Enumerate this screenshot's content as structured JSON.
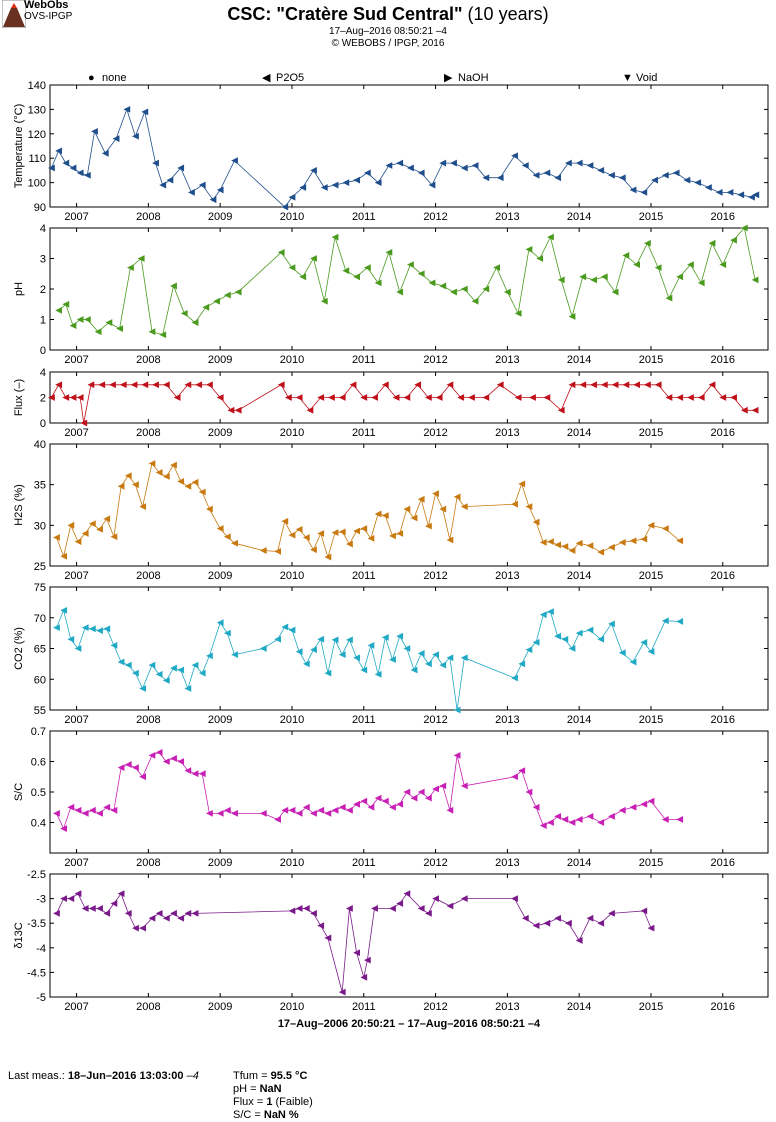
{
  "logo": {
    "line1": "WebObs",
    "line2": "OVS-IPGP"
  },
  "header": {
    "title_bold": "CSC: \"Cratère Sud Central\"",
    "title_rest": " (10 years)",
    "date_line": "17–Aug–2016 08:50:21 –4",
    "copyright": "© WEBOBS / IPGP, 2016"
  },
  "legend": [
    {
      "symbol": "●",
      "label": "none"
    },
    {
      "symbol": "◀",
      "label": "P2O5"
    },
    {
      "symbol": "▶",
      "label": "NaOH"
    },
    {
      "symbol": "▼",
      "label": "Void"
    }
  ],
  "x_axis_caption": "17–Aug–2006 20:50:21 – 17–Aug–2016 08:50:21 –4",
  "footer": {
    "last_meas_label": "Last meas.: ",
    "last_meas_value": "18–Jun–2016 13:03:00",
    "last_meas_tz": " –4",
    "tfum_label": "Tfum = ",
    "tfum_value": "95.5 °C",
    "ph_label": "pH = ",
    "ph_value": "NaN",
    "flux_label": "Flux = ",
    "flux_value": "1",
    "flux_note": " (Faible)",
    "sc_label": "S/C = ",
    "sc_value": "NaN %"
  },
  "chart_data": {
    "type": "line",
    "x_range": [
      2006.63,
      2016.63
    ],
    "x_ticks": [
      2007,
      2008,
      2009,
      2010,
      2011,
      2012,
      2013,
      2014,
      2015,
      2016
    ],
    "panels": [
      {
        "id": "temperature",
        "ylabel": "Temperature (°C)",
        "ylim": [
          90,
          140
        ],
        "yticks": [
          90,
          100,
          110,
          120,
          130,
          140
        ],
        "color": "#1f4e8c",
        "x": [
          2006.65,
          2006.75,
          2006.85,
          2006.95,
          2007.05,
          2007.15,
          2007.25,
          2007.4,
          2007.55,
          2007.7,
          2007.82,
          2007.95,
          2008.1,
          2008.2,
          2008.3,
          2008.45,
          2008.6,
          2008.75,
          2008.9,
          2009.0,
          2009.2,
          2009.9,
          2010.0,
          2010.15,
          2010.3,
          2010.45,
          2010.6,
          2010.75,
          2010.9,
          2011.05,
          2011.2,
          2011.35,
          2011.5,
          2011.65,
          2011.8,
          2011.95,
          2012.1,
          2012.25,
          2012.4,
          2012.55,
          2012.7,
          2012.9,
          2013.1,
          2013.25,
          2013.4,
          2013.55,
          2013.7,
          2013.85,
          2014.0,
          2014.15,
          2014.3,
          2014.45,
          2014.6,
          2014.75,
          2014.9,
          2015.05,
          2015.2,
          2015.35,
          2015.5,
          2015.65,
          2015.8,
          2015.95,
          2016.1,
          2016.25,
          2016.4,
          2016.46
        ],
        "values": [
          106,
          113,
          108,
          106,
          104,
          103,
          121,
          112,
          118,
          130,
          119,
          129,
          108,
          99,
          101,
          106,
          96,
          99,
          93,
          97,
          109,
          90,
          94,
          98,
          105,
          98,
          99,
          100,
          101,
          104,
          100,
          107,
          108,
          106,
          104,
          99,
          108,
          108,
          106,
          107,
          102,
          102,
          111,
          107,
          103,
          104,
          102,
          108,
          108,
          107,
          105,
          103,
          102,
          97,
          96,
          101,
          103,
          104,
          101,
          100,
          98,
          96,
          96,
          95,
          94,
          95
        ]
      },
      {
        "id": "ph",
        "ylabel": "pH",
        "ylim": [
          0,
          4
        ],
        "yticks": [
          0,
          1,
          2,
          3,
          4
        ],
        "color": "#4a9a1e",
        "x": [
          2006.75,
          2006.85,
          2006.95,
          2007.05,
          2007.15,
          2007.3,
          2007.45,
          2007.6,
          2007.75,
          2007.9,
          2008.05,
          2008.2,
          2008.35,
          2008.5,
          2008.65,
          2008.8,
          2008.95,
          2009.1,
          2009.25,
          2009.85,
          2010.0,
          2010.15,
          2010.3,
          2010.45,
          2010.6,
          2010.75,
          2010.9,
          2011.05,
          2011.2,
          2011.35,
          2011.5,
          2011.65,
          2011.8,
          2011.95,
          2012.1,
          2012.25,
          2012.4,
          2012.55,
          2012.7,
          2012.85,
          2013.0,
          2013.15,
          2013.3,
          2013.45,
          2013.6,
          2013.75,
          2013.9,
          2014.05,
          2014.2,
          2014.35,
          2014.5,
          2014.65,
          2014.8,
          2014.95,
          2015.1,
          2015.25,
          2015.4,
          2015.55,
          2015.7,
          2015.85,
          2016.0,
          2016.15,
          2016.3,
          2016.45
        ],
        "values": [
          1.3,
          1.5,
          0.8,
          1.0,
          1.0,
          0.6,
          0.9,
          0.7,
          2.7,
          3.0,
          0.6,
          0.5,
          2.1,
          1.2,
          0.9,
          1.4,
          1.6,
          1.8,
          1.9,
          3.2,
          2.7,
          2.4,
          3.0,
          1.6,
          3.7,
          2.6,
          2.4,
          2.7,
          2.2,
          3.2,
          1.9,
          2.8,
          2.5,
          2.2,
          2.1,
          1.9,
          2.0,
          1.6,
          2.0,
          2.7,
          1.9,
          1.2,
          3.3,
          3.0,
          3.7,
          2.3,
          1.1,
          2.4,
          2.3,
          2.4,
          1.9,
          3.1,
          2.8,
          3.5,
          2.7,
          1.7,
          2.4,
          2.8,
          2.2,
          3.5,
          2.8,
          3.6,
          4.0,
          2.3
        ]
      },
      {
        "id": "flux",
        "ylabel": "Flux (–)",
        "ylim": [
          0,
          4
        ],
        "yticks": [
          0,
          2,
          4
        ],
        "color": "#c0101a",
        "x": [
          2006.65,
          2006.75,
          2006.85,
          2006.95,
          2007.05,
          2007.1,
          2007.2,
          2007.35,
          2007.5,
          2007.65,
          2007.8,
          2007.95,
          2008.1,
          2008.25,
          2008.4,
          2008.55,
          2008.7,
          2008.85,
          2009.0,
          2009.15,
          2009.25,
          2009.85,
          2009.95,
          2010.1,
          2010.25,
          2010.4,
          2010.55,
          2010.7,
          2010.85,
          2011.0,
          2011.15,
          2011.3,
          2011.45,
          2011.6,
          2011.75,
          2011.9,
          2012.05,
          2012.2,
          2012.35,
          2012.5,
          2012.7,
          2012.9,
          2013.15,
          2013.35,
          2013.55,
          2013.75,
          2013.9,
          2014.05,
          2014.2,
          2014.35,
          2014.5,
          2014.65,
          2014.8,
          2014.95,
          2015.1,
          2015.25,
          2015.4,
          2015.55,
          2015.7,
          2015.85,
          2016.0,
          2016.15,
          2016.3,
          2016.45
        ],
        "values": [
          2,
          3,
          2,
          2,
          2,
          0,
          3,
          3,
          3,
          3,
          3,
          3,
          3,
          3,
          2,
          3,
          3,
          3,
          2,
          1,
          1,
          3,
          2,
          2,
          1,
          2,
          2,
          2,
          3,
          2,
          2,
          3,
          2,
          2,
          3,
          2,
          2,
          3,
          2,
          2,
          2,
          3,
          2,
          2,
          2,
          1,
          3,
          3,
          3,
          3,
          3,
          3,
          3,
          3,
          3,
          2,
          2,
          2,
          2,
          3,
          2,
          2,
          1,
          1
        ]
      },
      {
        "id": "h2s",
        "ylabel": "H2S (%)",
        "ylim": [
          25,
          40
        ],
        "yticks": [
          25,
          30,
          35,
          40
        ],
        "color": "#c87a10",
        "x": [
          2006.72,
          2006.82,
          2006.92,
          2007.02,
          2007.12,
          2007.22,
          2007.32,
          2007.42,
          2007.52,
          2007.62,
          2007.72,
          2007.82,
          2007.92,
          2008.05,
          2008.15,
          2008.25,
          2008.35,
          2008.45,
          2008.55,
          2008.65,
          2008.75,
          2008.85,
          2009.0,
          2009.1,
          2009.2,
          2009.6,
          2009.8,
          2009.9,
          2010.0,
          2010.1,
          2010.2,
          2010.3,
          2010.4,
          2010.5,
          2010.6,
          2010.7,
          2010.8,
          2010.9,
          2011.0,
          2011.1,
          2011.2,
          2011.3,
          2011.4,
          2011.5,
          2011.6,
          2011.7,
          2011.8,
          2011.9,
          2012.0,
          2012.1,
          2012.2,
          2012.3,
          2012.4,
          2013.1,
          2013.2,
          2013.3,
          2013.4,
          2013.5,
          2013.6,
          2013.7,
          2013.8,
          2013.9,
          2014.0,
          2014.15,
          2014.3,
          2014.45,
          2014.6,
          2014.75,
          2014.9,
          2015.0,
          2015.2,
          2015.4
        ],
        "values": [
          28.5,
          26.2,
          30.0,
          28.0,
          29.0,
          30.2,
          29.5,
          30.8,
          28.6,
          34.8,
          36.1,
          35.0,
          32.3,
          37.6,
          36.5,
          36.0,
          37.4,
          35.4,
          34.8,
          35.3,
          34.1,
          32.0,
          29.6,
          28.6,
          27.8,
          26.9,
          26.8,
          30.5,
          28.8,
          29.5,
          28.5,
          27.0,
          29.0,
          26.1,
          29.1,
          29.2,
          27.7,
          29.3,
          29.6,
          28.4,
          31.4,
          31.2,
          28.7,
          29.0,
          32.0,
          30.9,
          33.2,
          29.9,
          33.9,
          32.0,
          28.2,
          33.5,
          32.3,
          32.6,
          35.1,
          32.3,
          30.4,
          27.9,
          28.0,
          27.6,
          27.4,
          26.9,
          27.8,
          27.5,
          26.7,
          27.3,
          27.9,
          28.1,
          28.3,
          30.0,
          29.6,
          28.1
        ]
      },
      {
        "id": "co2",
        "ylabel": "CO2 (%)",
        "ylim": [
          55,
          75
        ],
        "yticks": [
          55,
          60,
          65,
          70,
          75
        ],
        "color": "#1fa9c4",
        "x": [
          2006.72,
          2006.82,
          2006.92,
          2007.02,
          2007.12,
          2007.22,
          2007.32,
          2007.42,
          2007.52,
          2007.62,
          2007.72,
          2007.82,
          2007.92,
          2008.05,
          2008.15,
          2008.25,
          2008.35,
          2008.45,
          2008.55,
          2008.65,
          2008.75,
          2008.85,
          2009.0,
          2009.1,
          2009.2,
          2009.6,
          2009.8,
          2009.9,
          2010.0,
          2010.1,
          2010.2,
          2010.3,
          2010.4,
          2010.5,
          2010.6,
          2010.7,
          2010.8,
          2010.9,
          2011.0,
          2011.1,
          2011.2,
          2011.3,
          2011.4,
          2011.5,
          2011.6,
          2011.7,
          2011.8,
          2011.9,
          2012.0,
          2012.1,
          2012.2,
          2012.3,
          2012.4,
          2013.1,
          2013.2,
          2013.3,
          2013.4,
          2013.5,
          2013.6,
          2013.7,
          2013.8,
          2013.9,
          2014.0,
          2014.15,
          2014.3,
          2014.45,
          2014.6,
          2014.75,
          2014.9,
          2015.0,
          2015.2,
          2015.4
        ],
        "values": [
          68.4,
          71.2,
          66.5,
          65.0,
          68.4,
          68.2,
          67.9,
          68.2,
          65.5,
          62.8,
          62.3,
          61.0,
          58.5,
          62.3,
          60.8,
          59.8,
          61.8,
          61.5,
          58.5,
          62.3,
          61.0,
          63.8,
          69.2,
          67.5,
          64.0,
          65.0,
          66.5,
          68.5,
          68.0,
          64.5,
          62.5,
          64.8,
          66.5,
          61.0,
          66.4,
          64.0,
          66.4,
          63.5,
          61.5,
          65.5,
          60.8,
          66.8,
          63.2,
          67.0,
          65.0,
          61.5,
          64.2,
          62.5,
          64.0,
          62.3,
          63.5,
          55.0,
          63.5,
          60.2,
          62.5,
          64.8,
          66.0,
          70.5,
          71.0,
          67.0,
          66.5,
          65.0,
          67.5,
          68.0,
          66.5,
          69.0,
          64.3,
          62.8,
          66.0,
          64.5,
          69.5,
          69.4
        ]
      },
      {
        "id": "sc",
        "ylabel": "S/C",
        "ylim": [
          0.3,
          0.7
        ],
        "yticks": [
          0.4,
          0.5,
          0.6,
          0.7
        ],
        "color": "#c81fb4",
        "x": [
          2006.72,
          2006.82,
          2006.92,
          2007.02,
          2007.12,
          2007.22,
          2007.32,
          2007.42,
          2007.52,
          2007.62,
          2007.72,
          2007.82,
          2007.92,
          2008.05,
          2008.15,
          2008.25,
          2008.35,
          2008.45,
          2008.55,
          2008.65,
          2008.75,
          2008.85,
          2009.0,
          2009.1,
          2009.2,
          2009.6,
          2009.8,
          2009.9,
          2010.0,
          2010.1,
          2010.2,
          2010.3,
          2010.4,
          2010.5,
          2010.6,
          2010.7,
          2010.8,
          2010.9,
          2011.0,
          2011.1,
          2011.2,
          2011.3,
          2011.4,
          2011.5,
          2011.6,
          2011.7,
          2011.8,
          2011.9,
          2012.0,
          2012.1,
          2012.2,
          2012.3,
          2012.4,
          2013.1,
          2013.2,
          2013.3,
          2013.4,
          2013.5,
          2013.6,
          2013.7,
          2013.8,
          2013.9,
          2014.0,
          2014.15,
          2014.3,
          2014.45,
          2014.6,
          2014.75,
          2014.9,
          2015.0,
          2015.2,
          2015.4
        ],
        "values": [
          0.43,
          0.38,
          0.45,
          0.44,
          0.43,
          0.44,
          0.43,
          0.45,
          0.44,
          0.58,
          0.59,
          0.58,
          0.55,
          0.62,
          0.63,
          0.6,
          0.61,
          0.6,
          0.57,
          0.56,
          0.56,
          0.43,
          0.43,
          0.44,
          0.43,
          0.43,
          0.41,
          0.44,
          0.44,
          0.43,
          0.45,
          0.43,
          0.44,
          0.43,
          0.44,
          0.45,
          0.44,
          0.46,
          0.47,
          0.45,
          0.48,
          0.47,
          0.45,
          0.46,
          0.5,
          0.48,
          0.5,
          0.48,
          0.51,
          0.52,
          0.44,
          0.62,
          0.52,
          0.55,
          0.57,
          0.5,
          0.45,
          0.39,
          0.4,
          0.42,
          0.41,
          0.4,
          0.41,
          0.42,
          0.4,
          0.42,
          0.44,
          0.45,
          0.46,
          0.47,
          0.41,
          0.41
        ]
      },
      {
        "id": "d13c",
        "ylabel": "δ13C",
        "ylim": [
          -5,
          -2.5
        ],
        "yticks": [
          -5,
          -4.5,
          -4,
          -3.5,
          -3,
          -2.5
        ],
        "color": "#7a1a8a",
        "x": [
          2006.72,
          2006.82,
          2006.92,
          2007.02,
          2007.12,
          2007.22,
          2007.32,
          2007.42,
          2007.52,
          2007.62,
          2007.72,
          2007.82,
          2007.92,
          2008.05,
          2008.15,
          2008.25,
          2008.35,
          2008.45,
          2008.55,
          2008.65,
          2010.0,
          2010.1,
          2010.2,
          2010.3,
          2010.4,
          2010.5,
          2010.7,
          2010.8,
          2010.9,
          2011.0,
          2011.05,
          2011.15,
          2011.4,
          2011.5,
          2011.6,
          2011.8,
          2011.9,
          2012.0,
          2012.2,
          2012.4,
          2013.1,
          2013.25,
          2013.4,
          2013.55,
          2013.7,
          2013.85,
          2014.0,
          2014.15,
          2014.3,
          2014.45,
          2014.9,
          2015.0
        ],
        "values": [
          -3.3,
          -3.0,
          -3.0,
          -2.9,
          -3.2,
          -3.2,
          -3.2,
          -3.3,
          -3.1,
          -2.9,
          -3.3,
          -3.6,
          -3.6,
          -3.4,
          -3.3,
          -3.4,
          -3.3,
          -3.4,
          -3.3,
          -3.3,
          -3.25,
          -3.2,
          -3.2,
          -3.3,
          -3.55,
          -3.8,
          -4.9,
          -3.2,
          -4.1,
          -4.6,
          -4.25,
          -3.2,
          -3.2,
          -3.1,
          -2.9,
          -3.2,
          -3.3,
          -3.0,
          -3.15,
          -3.0,
          -3.0,
          -3.4,
          -3.55,
          -3.5,
          -3.4,
          -3.5,
          -3.85,
          -3.4,
          -3.5,
          -3.3,
          -3.25,
          -3.6
        ]
      }
    ]
  }
}
